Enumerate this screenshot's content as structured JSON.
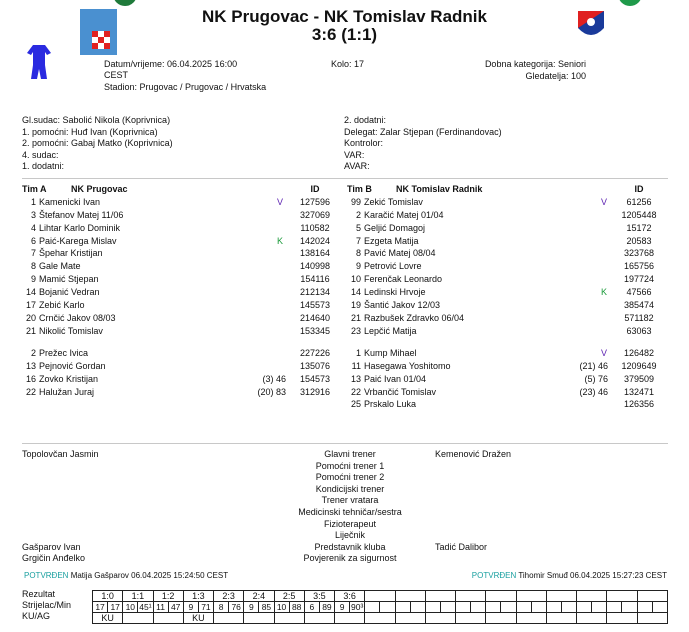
{
  "header": {
    "title": "NK Prugovac - NK Tomislav Radnik",
    "score": "3:6 (1:1)",
    "datetime": "Datum/vrijeme: 06.04.2025 16:00",
    "timezone": "CEST",
    "stadium": "Stadion: Prugovac / Prugovac / Hrvatska",
    "round": "Kolo: 17",
    "category": "Dobna kategorija: Seniori",
    "spectators": "Gledatelja: 100",
    "jersey_color": "#2a2ae0"
  },
  "officials": {
    "left": [
      "Gl.sudac: Sabolić Nikola (Koprivnica)",
      "1. pomoćni: Huđ Ivan (Koprivnica)",
      "2. pomoćni: Gabaj Matko (Koprivnica)",
      "4. sudac:",
      "1. dodatni:"
    ],
    "right": [
      "2. dodatni:",
      "Delegat: Zalar Stjepan (Ferdinandovac)",
      "Kontrolor:",
      "VAR:",
      "AVAR:"
    ]
  },
  "teamA": {
    "label": "Tim A",
    "name": "NK Prugovac",
    "id_header": "ID",
    "starters": [
      [
        "1",
        "Kamenicki Ivan",
        "V",
        "",
        "127596"
      ],
      [
        "3",
        "Štefanov Matej 11/06",
        "",
        "",
        "327069"
      ],
      [
        "4",
        "Lihtar Karlo Dominik",
        "",
        "",
        "110582"
      ],
      [
        "6",
        "Paić-Karega Mislav",
        "K",
        "",
        "142024"
      ],
      [
        "7",
        "Špehar Kristijan",
        "",
        "",
        "138164"
      ],
      [
        "8",
        "Gale Mate",
        "",
        "",
        "140998"
      ],
      [
        "9",
        "Mamić Stjepan",
        "",
        "",
        "154116"
      ],
      [
        "14",
        "Bojanić Vedran",
        "",
        "",
        "212134"
      ],
      [
        "17",
        "Zebić Karlo",
        "",
        "",
        "145573"
      ],
      [
        "20",
        "Crnčić Jakov 08/03",
        "",
        "",
        "214640"
      ],
      [
        "21",
        "Nikolić Tomislav",
        "",
        "",
        "153345"
      ]
    ],
    "subs": [
      [
        "2",
        "Prežec Ivica",
        "",
        "",
        "227226"
      ],
      [
        "13",
        "Pejnović Gordan",
        "",
        "",
        "135076"
      ],
      [
        "16",
        "Zovko Kristijan",
        "",
        "(3)  46",
        "154573"
      ],
      [
        "22",
        "Halužan Juraj",
        "",
        "(20)  83",
        "312916"
      ]
    ]
  },
  "teamB": {
    "label": "Tim B",
    "name": "NK Tomislav Radnik",
    "id_header": "ID",
    "starters": [
      [
        "99",
        "Zekić Tomislav",
        "V",
        "",
        "61256"
      ],
      [
        "2",
        "Karačić Matej 01/04",
        "",
        "",
        "1205448"
      ],
      [
        "5",
        "Geljić Domagoj",
        "",
        "",
        "15172"
      ],
      [
        "7",
        "Ezgeta Matija",
        "",
        "",
        "20583"
      ],
      [
        "8",
        "Pavić Matej 08/04",
        "",
        "",
        "323768"
      ],
      [
        "9",
        "Petrović Lovre",
        "",
        "",
        "165756"
      ],
      [
        "10",
        "Ferenčak Leonardo",
        "",
        "",
        "197724"
      ],
      [
        "14",
        "Ledinski Hrvoje",
        "K",
        "",
        "47566"
      ],
      [
        "19",
        "Šantić Jakov 12/03",
        "",
        "",
        "385474"
      ],
      [
        "21",
        "Razbušek Zdravko 06/04",
        "",
        "",
        "571182"
      ],
      [
        "23",
        "Lepčić Matija",
        "",
        "",
        "63063"
      ]
    ],
    "subs": [
      [
        "1",
        "Kump Mihael",
        "V",
        "",
        "126482"
      ],
      [
        "11",
        "Hasegawa Yoshitomo",
        "",
        "(21)  46",
        "1209649"
      ],
      [
        "13",
        "Paić Ivan 01/04",
        "",
        "(5)  76",
        "379509"
      ],
      [
        "22",
        "Vrbančić Tomislav",
        "",
        "(23)  46",
        "132471"
      ],
      [
        "25",
        "Prskalo Luka",
        "",
        "",
        "126356"
      ]
    ]
  },
  "staff": {
    "roles": [
      "Glavni trener",
      "Pomoćni trener 1",
      "Pomoćni trener 2",
      "Kondicijski trener",
      "Trener vratara",
      "Medicinski tehničar/sestra",
      "Fizioterapeut",
      "Liječnik",
      "Predstavnik kluba",
      "Povjerenik za sigurnost"
    ],
    "teamA": [
      "Topolovčan Jasmin",
      "",
      "",
      "",
      "",
      "",
      "",
      "",
      "Gašparov Ivan",
      "Grgičin Anđelko"
    ],
    "teamB": [
      "Kemenović Dražen",
      "",
      "",
      "",
      "",
      "",
      "",
      "",
      "Tadić Dalibor",
      ""
    ]
  },
  "confirm": {
    "status": "POTVRĐEN",
    "left": "Matija Gašparov 06.04.2025 15:24:50 CEST",
    "right": "Tihomir Smuđ 06.04.2025 15:27:23 CEST"
  },
  "goals": {
    "labels": [
      "Rezultat",
      "Strijelac/Min",
      "KU/AG"
    ],
    "results": [
      "1:0",
      "1:1",
      "1:2",
      "1:3",
      "2:3",
      "2:4",
      "2:5",
      "3:5",
      "3:6"
    ],
    "scorers": [
      [
        "17",
        "17"
      ],
      [
        "10",
        "45¹"
      ],
      [
        "11",
        "47"
      ],
      [
        "9",
        "71"
      ],
      [
        "8",
        "76"
      ],
      [
        "9",
        "85"
      ],
      [
        "10",
        "88"
      ],
      [
        "6",
        "89"
      ],
      [
        "9",
        "90³"
      ]
    ],
    "ku_ag": [
      "KU",
      "",
      "",
      "KU",
      "",
      "",
      "",
      "",
      ""
    ],
    "total_columns": 19
  }
}
